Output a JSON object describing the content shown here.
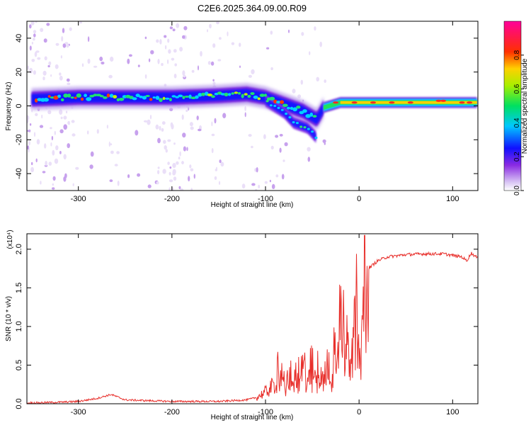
{
  "page": {
    "title": "C2E6.2025.364.09.00.R09"
  },
  "chart_data": [
    {
      "type": "heatmap",
      "title": "C2E6.2025.364.09.00.R09",
      "xlabel": "Height of straight line (km)",
      "ylabel": "Frequency (Hz)",
      "xlim": [
        -355,
        127
      ],
      "ylim": [
        -50,
        50
      ],
      "x_ticks": [
        -300,
        -200,
        -100,
        0,
        100
      ],
      "y_ticks": [
        -40,
        -20,
        0,
        20,
        40
      ],
      "grid": false,
      "colorbar": {
        "label": "Normalized spectral amplitude",
        "range": [
          0,
          1
        ],
        "ticks": [
          0.0,
          0.2,
          0.4,
          0.6,
          0.8
        ],
        "tick_labels": [
          "0.0",
          "0.2",
          "0.4",
          "0.6",
          "0.8"
        ],
        "colormap": "rainbow (white-violet-blue-cyan-green-yellow-red-magenta)"
      },
      "ridge": [
        {
          "x": -350,
          "y": 4
        },
        {
          "x": -300,
          "y": 5
        },
        {
          "x": -250,
          "y": 5
        },
        {
          "x": -200,
          "y": 5
        },
        {
          "x": -150,
          "y": 6
        },
        {
          "x": -120,
          "y": 7
        },
        {
          "x": -100,
          "y": 5
        },
        {
          "x": -80,
          "y": 1
        },
        {
          "x": -60,
          "y": -3
        },
        {
          "x": -45,
          "y": -8
        },
        {
          "x": -38,
          "y": -1
        },
        {
          "x": -20,
          "y": 2
        },
        {
          "x": 0,
          "y": 2
        },
        {
          "x": 50,
          "y": 2
        },
        {
          "x": 100,
          "y": 2
        },
        {
          "x": 127,
          "y": 2
        }
      ],
      "secondary_ridge": [
        {
          "x": -100,
          "y": 3
        },
        {
          "x": -80,
          "y": -4
        },
        {
          "x": -70,
          "y": -10
        },
        {
          "x": -55,
          "y": -13
        },
        {
          "x": -45,
          "y": -19
        }
      ]
    },
    {
      "type": "line",
      "xlabel": "Height of straight line (km)",
      "ylabel": "SNR (10 * v/v)",
      "y_multiplier_label": "(x10⁴)",
      "xlim": [
        -355,
        127
      ],
      "ylim": [
        0,
        2.2
      ],
      "x_ticks": [
        -300,
        -200,
        -100,
        0,
        100
      ],
      "y_ticks": [
        0.0,
        0.5,
        1.0,
        1.5,
        2.0
      ],
      "y_tick_labels": [
        "0.0",
        "0.5",
        "1.0",
        "1.5",
        "2.0"
      ],
      "grid": false,
      "series": [
        {
          "color": "#e8302c",
          "x": [
            -355,
            -320,
            -300,
            -280,
            -265,
            -250,
            -200,
            -150,
            -120,
            -110,
            -100,
            -90,
            -85,
            -80,
            -75,
            -70,
            -60,
            -50,
            -40,
            -30,
            -25,
            -20,
            -15,
            -10,
            -5,
            0,
            5,
            10,
            20,
            30,
            50,
            70,
            90,
            100,
            110,
            115,
            120,
            127
          ],
          "values": [
            0.01,
            0.02,
            0.03,
            0.07,
            0.12,
            0.05,
            0.03,
            0.03,
            0.05,
            0.08,
            0.15,
            0.25,
            0.55,
            0.45,
            0.35,
            0.38,
            0.45,
            0.5,
            0.5,
            0.45,
            0.8,
            1.3,
            1.05,
            1.3,
            1.25,
            1.45,
            1.65,
            1.75,
            1.85,
            1.9,
            1.93,
            1.94,
            1.94,
            1.92,
            1.9,
            1.85,
            1.95,
            1.88
          ]
        }
      ]
    }
  ]
}
